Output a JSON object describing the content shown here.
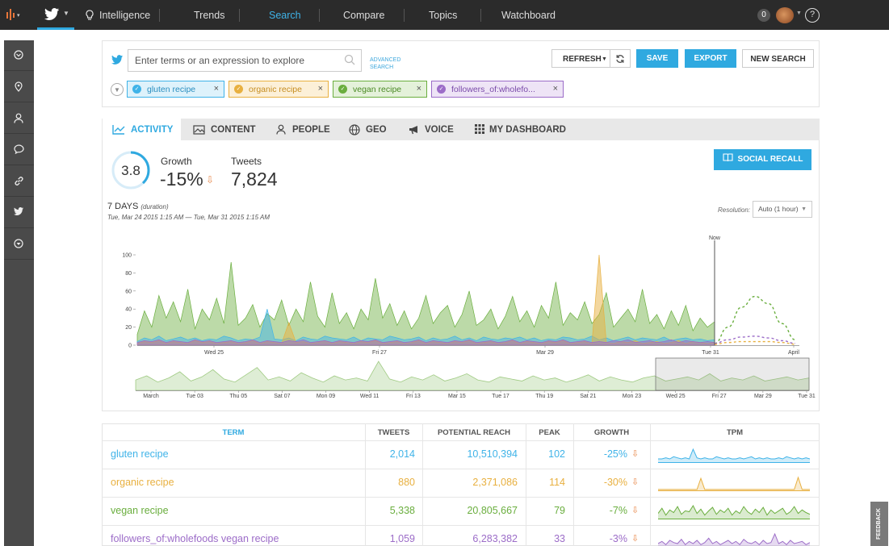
{
  "nav": {
    "items": [
      "Intelligence",
      "Trends",
      "Search",
      "Compare",
      "Topics",
      "Watchboard"
    ],
    "notification_count": "0",
    "help": "?"
  },
  "search": {
    "placeholder": "Enter terms or an expression to explore",
    "advanced_line1": "ADVANCED",
    "advanced_line2": "SEARCH",
    "refresh_label": "REFRESH",
    "save_label": "SAVE",
    "export_label": "EXPORT",
    "new_search_label": "NEW SEARCH",
    "chips": [
      {
        "label": "gluten recipe",
        "color": "#3fb3e8"
      },
      {
        "label": "organic recipe",
        "color": "#e8b040"
      },
      {
        "label": "vegan recipe",
        "color": "#6aae3e"
      },
      {
        "label": "followers_of:wholefo...",
        "color": "#9c6cc8"
      }
    ]
  },
  "tabs": [
    "ACTIVITY",
    "CONTENT",
    "PEOPLE",
    "GEO",
    "VOICE",
    "MY DASHBOARD"
  ],
  "summary": {
    "score": "3.8",
    "growth_label": "Growth",
    "growth_value": "-15%",
    "tweets_label": "Tweets",
    "tweets_value": "7,824",
    "social_recall_label": "SOCIAL RECALL",
    "duration": "7 DAYS",
    "duration_note": "(duration)",
    "range": "Tue, Mar 24 2015 1:15 AM — Tue, Mar 31 2015 1:15 AM",
    "resolution_label": "Resolution:",
    "resolution_value": "Auto (1 hour)"
  },
  "colors": {
    "accent": "#2fa9e0",
    "gluten": "#3fb3e8",
    "organic": "#e8b040",
    "vegan": "#6aae3e",
    "followers": "#9c6cc8",
    "down": "#e88a4d"
  },
  "chart_data": {
    "type": "area",
    "y_ticks": [
      "0",
      "20",
      "40",
      "60",
      "80",
      "100"
    ],
    "ylim": [
      0,
      110
    ],
    "x_ticks": [
      "Wed 25",
      "Fri 27",
      "Mar 29",
      "Tue 31",
      "April"
    ],
    "now_label": "Now",
    "overview_ticks": [
      "March",
      "Tue 03",
      "Thu 05",
      "Sat 07",
      "Mon 09",
      "Wed 11",
      "Fri 13",
      "Mar 15",
      "Tue 17",
      "Thu 19",
      "Sat 21",
      "Mon 23",
      "Wed 25",
      "Fri 27",
      "Mar 29",
      "Tue 31"
    ],
    "series": [
      {
        "name": "vegan recipe",
        "color": "#6aae3e",
        "values": [
          12,
          38,
          20,
          55,
          30,
          48,
          26,
          62,
          18,
          40,
          28,
          52,
          24,
          92,
          22,
          30,
          45,
          20,
          35,
          28,
          50,
          22,
          40,
          26,
          70,
          32,
          20,
          58,
          24,
          36,
          18,
          40,
          28,
          74,
          30,
          46,
          22,
          38,
          18,
          30,
          55,
          24,
          36,
          44,
          20,
          34,
          60,
          22,
          28,
          40,
          18,
          32,
          54,
          26,
          38,
          20,
          44,
          30,
          70,
          22,
          36,
          28,
          48,
          24,
          34,
          58,
          20,
          30,
          40,
          26,
          62,
          24,
          34,
          18,
          38,
          22,
          44,
          16,
          30,
          20,
          26
        ]
      },
      {
        "name": "gluten recipe",
        "color": "#3fb3e8",
        "values": [
          4,
          8,
          6,
          10,
          5,
          7,
          9,
          6,
          8,
          5,
          7,
          6,
          10,
          8,
          5,
          7,
          6,
          9,
          40,
          7,
          6,
          8,
          5,
          9,
          7,
          6,
          10,
          8,
          7,
          6,
          9,
          5,
          8,
          7,
          6,
          10,
          8,
          6,
          7,
          9,
          5,
          8,
          6,
          7,
          10,
          6,
          8,
          5,
          9,
          7,
          6,
          8,
          7,
          9,
          6,
          8,
          5,
          7,
          6,
          9,
          8,
          6,
          7,
          10,
          6,
          8,
          5,
          7,
          9,
          6,
          8,
          7,
          6,
          9,
          5,
          7,
          8,
          6,
          7,
          5,
          6
        ]
      },
      {
        "name": "organic recipe",
        "color": "#e8b040",
        "values": [
          2,
          4,
          3,
          5,
          2,
          4,
          3,
          2,
          5,
          3,
          4,
          2,
          3,
          4,
          2,
          3,
          5,
          2,
          4,
          3,
          2,
          25,
          3,
          4,
          2,
          3,
          5,
          2,
          4,
          3,
          2,
          4,
          3,
          5,
          2,
          3,
          4,
          2,
          3,
          5,
          2,
          4,
          3,
          2,
          4,
          3,
          5,
          2,
          3,
          4,
          2,
          3,
          5,
          2,
          4,
          3,
          2,
          4,
          3,
          5,
          2,
          3,
          4,
          2,
          100,
          3,
          2,
          4,
          3,
          5,
          2,
          3,
          4,
          2,
          3,
          5,
          2,
          4,
          3,
          2,
          3
        ]
      },
      {
        "name": "followers_of:wholefoods vegan recipe",
        "color": "#9c6cc8",
        "values": [
          3,
          5,
          4,
          6,
          3,
          5,
          4,
          3,
          6,
          4,
          5,
          3,
          4,
          5,
          3,
          4,
          6,
          3,
          5,
          4,
          3,
          5,
          4,
          6,
          3,
          4,
          5,
          3,
          5,
          4,
          3,
          5,
          4,
          6,
          3,
          4,
          5,
          3,
          4,
          6,
          3,
          5,
          4,
          3,
          5,
          4,
          6,
          3,
          4,
          5,
          3,
          4,
          6,
          3,
          5,
          4,
          3,
          5,
          4,
          6,
          3,
          4,
          5,
          3,
          4,
          3,
          5,
          4,
          6,
          3,
          4,
          5,
          3,
          4,
          6,
          3,
          5,
          4,
          3,
          4,
          3
        ]
      }
    ],
    "forecast": [
      {
        "name": "vegan recipe",
        "color": "#6aae3e",
        "values": [
          2,
          20,
          42,
          54,
          46,
          24,
          6
        ]
      },
      {
        "name": "followers_of:wholefoods vegan recipe",
        "color": "#9c6cc8",
        "values": [
          2,
          6,
          9,
          10,
          8,
          5,
          2
        ]
      },
      {
        "name": "organic recipe",
        "color": "#e8b040",
        "values": [
          1,
          3,
          4,
          4,
          4,
          3,
          1
        ]
      }
    ],
    "overview_values": [
      10,
      14,
      8,
      12,
      18,
      9,
      13,
      20,
      11,
      8,
      15,
      22,
      10,
      13,
      9,
      17,
      12,
      8,
      14,
      10,
      12,
      9,
      28,
      11,
      8,
      13,
      10,
      15,
      9,
      12,
      16,
      10,
      8,
      13,
      11,
      9,
      14,
      10,
      12,
      8,
      11,
      15,
      9,
      13,
      10,
      8,
      12,
      14,
      9,
      11,
      13,
      10,
      16,
      9,
      12,
      10,
      14,
      9,
      11,
      13,
      10,
      12
    ]
  },
  "table": {
    "headers": [
      "TERM",
      "TWEETS",
      "POTENTIAL REACH",
      "PEAK",
      "GROWTH",
      "TPM"
    ],
    "rows": [
      {
        "term": "gluten recipe",
        "tweets": "2,014",
        "reach": "10,510,394",
        "peak": "102",
        "growth": "-25%",
        "color": "#3fb3e8",
        "tpm": [
          3,
          3,
          4,
          3,
          5,
          4,
          3,
          4,
          3,
          12,
          4,
          3,
          4,
          3,
          3,
          5,
          4,
          3,
          4,
          3,
          3,
          4,
          3,
          4,
          5,
          3,
          4,
          3,
          4,
          3,
          3,
          4,
          3,
          5,
          4,
          3,
          4,
          3,
          4,
          3
        ]
      },
      {
        "term": "organic recipe",
        "tweets": "880",
        "reach": "2,371,086",
        "peak": "114",
        "growth": "-30%",
        "color": "#e8b040",
        "tpm": [
          1,
          1,
          1,
          1,
          1,
          1,
          1,
          1,
          1,
          1,
          1,
          14,
          1,
          1,
          1,
          1,
          1,
          1,
          1,
          1,
          1,
          1,
          1,
          1,
          1,
          1,
          1,
          1,
          1,
          1,
          1,
          1,
          1,
          1,
          1,
          1,
          15,
          1,
          1,
          1
        ]
      },
      {
        "term": "vegan recipe",
        "tweets": "5,338",
        "reach": "20,805,667",
        "peak": "79",
        "growth": "-7%",
        "color": "#6aae3e",
        "tpm": [
          6,
          12,
          4,
          10,
          7,
          14,
          5,
          9,
          8,
          15,
          6,
          11,
          4,
          9,
          13,
          5,
          10,
          7,
          12,
          4,
          9,
          6,
          14,
          8,
          5,
          11,
          7,
          13,
          4,
          10,
          6,
          9,
          12,
          5,
          8,
          14,
          6,
          10,
          7,
          5
        ]
      },
      {
        "term": "followers_of:wholefoods vegan recipe",
        "tweets": "1,059",
        "reach": "6,283,382",
        "peak": "33",
        "growth": "-3%",
        "color": "#9c6cc8",
        "tpm": [
          3,
          5,
          2,
          6,
          4,
          3,
          7,
          2,
          5,
          3,
          6,
          2,
          4,
          8,
          3,
          5,
          2,
          4,
          6,
          3,
          5,
          2,
          7,
          4,
          3,
          5,
          2,
          6,
          3,
          4,
          12,
          3,
          5,
          2,
          6,
          3,
          4,
          5,
          2,
          4
        ]
      }
    ]
  },
  "feedback_label": "FEEDBACK"
}
